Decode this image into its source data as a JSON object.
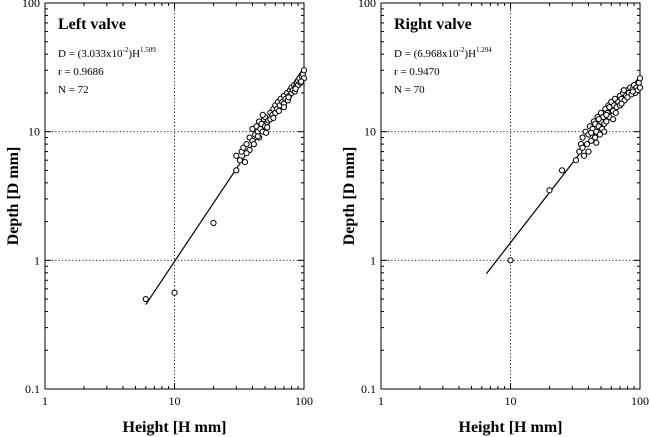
{
  "chart_data": [
    {
      "type": "scatter",
      "title": "Left valve",
      "xlabel": "Height [H mm]",
      "ylabel": "Depth [D mm]",
      "xscale": "log",
      "yscale": "log",
      "xlim": [
        1,
        100
      ],
      "ylim": [
        0.1,
        100
      ],
      "x_tick_labels": [
        "1",
        "10",
        "100"
      ],
      "y_tick_labels": [
        "0.1",
        "1",
        "10",
        "100"
      ],
      "grid": "dotted lines at 10 (x) and 1, 10 (y)",
      "annotations": {
        "eq_prefix": "D = (3.033x10",
        "eq_exp1": "-2",
        "eq_mid": ")H",
        "eq_exp2": "1.509",
        "r": "r = 0.9686",
        "n": "N = 72"
      },
      "fit": {
        "a": 0.03033,
        "b": 1.509,
        "x_range": [
          6,
          100
        ]
      },
      "points": [
        [
          6,
          0.5
        ],
        [
          10,
          0.56
        ],
        [
          20,
          1.95
        ],
        [
          30,
          5.0
        ],
        [
          30,
          6.5
        ],
        [
          32,
          6.0
        ],
        [
          33,
          7.0
        ],
        [
          34,
          7.5
        ],
        [
          35,
          5.8
        ],
        [
          36,
          8.0
        ],
        [
          38,
          7.2
        ],
        [
          38,
          9.0
        ],
        [
          40,
          8.5
        ],
        [
          40,
          10.5
        ],
        [
          41,
          8.0
        ],
        [
          42,
          9.5
        ],
        [
          43,
          11.0
        ],
        [
          44,
          10.0
        ],
        [
          45,
          9.0
        ],
        [
          45,
          12.0
        ],
        [
          46,
          10.5
        ],
        [
          47,
          11.5
        ],
        [
          48,
          10.0
        ],
        [
          49,
          12.5
        ],
        [
          50,
          11.0
        ],
        [
          50,
          13.0
        ],
        [
          51,
          9.8
        ],
        [
          52,
          11.8
        ],
        [
          53,
          12.2
        ],
        [
          55,
          14.0
        ],
        [
          55,
          12.5
        ],
        [
          57,
          13.5
        ],
        [
          58,
          15.0
        ],
        [
          60,
          14.0
        ],
        [
          60,
          16.0
        ],
        [
          62,
          15.0
        ],
        [
          63,
          17.0
        ],
        [
          65,
          16.0
        ],
        [
          66,
          18.0
        ],
        [
          68,
          17.0
        ],
        [
          70,
          19.0
        ],
        [
          70,
          16.5
        ],
        [
          72,
          18.0
        ],
        [
          74,
          20.0
        ],
        [
          75,
          17.5
        ],
        [
          77,
          19.0
        ],
        [
          78,
          21.0
        ],
        [
          80,
          20.0
        ],
        [
          80,
          22.0
        ],
        [
          82,
          21.0
        ],
        [
          84,
          23.0
        ],
        [
          85,
          20.5
        ],
        [
          87,
          22.5
        ],
        [
          88,
          24.0
        ],
        [
          90,
          23.0
        ],
        [
          90,
          25.0
        ],
        [
          92,
          26.0
        ],
        [
          94,
          24.0
        ],
        [
          96,
          27.0
        ],
        [
          98,
          28.0
        ],
        [
          100,
          26.0
        ],
        [
          100,
          30.0
        ],
        [
          36,
          6.8
        ],
        [
          44,
          9.2
        ],
        [
          52,
          10.8
        ],
        [
          58,
          12.8
        ],
        [
          64,
          14.5
        ],
        [
          70,
          15.5
        ],
        [
          76,
          18.5
        ],
        [
          86,
          21.5
        ],
        [
          95,
          24.5
        ],
        [
          48,
          13.5
        ]
      ]
    },
    {
      "type": "scatter",
      "title": "Right valve",
      "xlabel": "Height [H mm]",
      "ylabel": "Depth [D mm]",
      "xscale": "log",
      "yscale": "log",
      "xlim": [
        1,
        100
      ],
      "ylim": [
        0.1,
        100
      ],
      "x_tick_labels": [
        "1",
        "10",
        "100"
      ],
      "y_tick_labels": [
        "0.1",
        "1",
        "10",
        "100"
      ],
      "grid": "dotted lines at 10 (x) and 1, 10 (y)",
      "annotations": {
        "eq_prefix": "D = (6.968x10",
        "eq_exp1": "-2",
        "eq_mid": ")H",
        "eq_exp2": "1.294",
        "r": "r = 0.9470",
        "n": "N = 70"
      },
      "fit": {
        "a": 0.06968,
        "b": 1.294,
        "x_range": [
          6.5,
          100
        ]
      },
      "points": [
        [
          10,
          1.0
        ],
        [
          20,
          3.5
        ],
        [
          25,
          5.0
        ],
        [
          32,
          6.0
        ],
        [
          34,
          7.0
        ],
        [
          35,
          8.0
        ],
        [
          36,
          9.0
        ],
        [
          37,
          6.5
        ],
        [
          38,
          10.0
        ],
        [
          39,
          8.0
        ],
        [
          40,
          9.5
        ],
        [
          40,
          7.0
        ],
        [
          41,
          11.0
        ],
        [
          42,
          8.5
        ],
        [
          43,
          10.5
        ],
        [
          44,
          12.0
        ],
        [
          45,
          9.0
        ],
        [
          45,
          11.5
        ],
        [
          46,
          10.0
        ],
        [
          47,
          13.0
        ],
        [
          48,
          11.0
        ],
        [
          49,
          9.5
        ],
        [
          50,
          12.0
        ],
        [
          50,
          14.0
        ],
        [
          51,
          10.5
        ],
        [
          52,
          13.0
        ],
        [
          53,
          11.5
        ],
        [
          54,
          15.0
        ],
        [
          55,
          12.0
        ],
        [
          56,
          14.0
        ],
        [
          57,
          16.0
        ],
        [
          58,
          13.0
        ],
        [
          60,
          15.0
        ],
        [
          60,
          17.0
        ],
        [
          62,
          14.5
        ],
        [
          63,
          16.0
        ],
        [
          64,
          18.0
        ],
        [
          66,
          15.5
        ],
        [
          68,
          17.0
        ],
        [
          70,
          19.0
        ],
        [
          70,
          16.0
        ],
        [
          72,
          18.0
        ],
        [
          74,
          20.0
        ],
        [
          76,
          17.5
        ],
        [
          78,
          19.0
        ],
        [
          80,
          21.0
        ],
        [
          82,
          20.0
        ],
        [
          84,
          22.0
        ],
        [
          86,
          19.5
        ],
        [
          88,
          21.5
        ],
        [
          90,
          23.0
        ],
        [
          92,
          20.0
        ],
        [
          94,
          22.0
        ],
        [
          96,
          21.0
        ],
        [
          98,
          24.0
        ],
        [
          100,
          26.0
        ],
        [
          100,
          22.0
        ],
        [
          36,
          7.5
        ],
        [
          42,
          9.8
        ],
        [
          48,
          12.5
        ],
        [
          53,
          10.0
        ],
        [
          58,
          15.5
        ],
        [
          65,
          14.0
        ],
        [
          72,
          16.5
        ],
        [
          80,
          18.5
        ],
        [
          88,
          20.5
        ],
        [
          46,
          8.2
        ],
        [
          55,
          13.5
        ],
        [
          62,
          12.5
        ],
        [
          75,
          21.0
        ]
      ]
    }
  ]
}
